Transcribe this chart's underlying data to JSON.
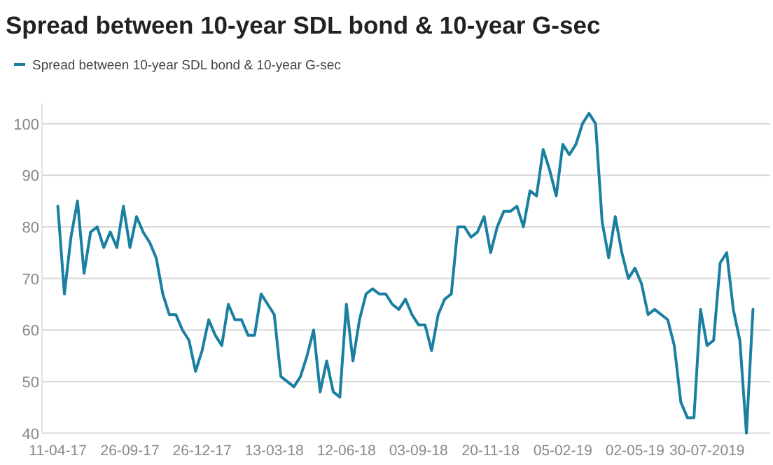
{
  "chart_data": {
    "type": "line",
    "title": "Spread between 10-year SDL bond & 10-year G-sec",
    "categories": [
      "11-04-17",
      null,
      null,
      null,
      null,
      null,
      null,
      null,
      null,
      null,
      null,
      "26-09-17",
      null,
      null,
      null,
      null,
      null,
      null,
      null,
      null,
      null,
      null,
      "26-12-17",
      null,
      null,
      null,
      null,
      null,
      null,
      null,
      null,
      null,
      null,
      "13-03-18",
      null,
      null,
      null,
      null,
      null,
      null,
      null,
      null,
      null,
      null,
      "12-06-18",
      null,
      null,
      null,
      null,
      null,
      null,
      null,
      null,
      null,
      null,
      "03-09-18",
      null,
      null,
      null,
      null,
      null,
      null,
      null,
      null,
      null,
      null,
      "20-11-18",
      null,
      null,
      null,
      null,
      null,
      null,
      null,
      null,
      null,
      null,
      "05-02-19",
      null,
      null,
      null,
      null,
      null,
      null,
      null,
      null,
      null,
      null,
      "02-05-19",
      null,
      null,
      null,
      null,
      null,
      null,
      null,
      null,
      null,
      null,
      "30-07-2019",
      null,
      null,
      null,
      null,
      null,
      null,
      null
    ],
    "series": [
      {
        "name": "Spread between 10-year SDL bond & 10-year G-sec",
        "color": "#1a7fa0",
        "values": [
          84,
          67,
          78,
          85,
          71,
          79,
          80,
          76,
          79,
          76,
          84,
          76,
          82,
          79,
          77,
          74,
          67,
          63,
          63,
          60,
          58,
          52,
          56,
          62,
          59,
          57,
          65,
          62,
          62,
          59,
          59,
          67,
          65,
          63,
          51,
          50,
          49,
          51,
          55,
          60,
          48,
          54,
          48,
          47,
          65,
          54,
          62,
          67,
          68,
          67,
          67,
          65,
          64,
          66,
          63,
          61,
          61,
          56,
          63,
          66,
          67,
          80,
          80,
          78,
          79,
          82,
          75,
          80,
          83,
          83,
          84,
          80,
          87,
          86,
          95,
          91,
          86,
          96,
          94,
          96,
          100,
          102,
          100,
          81,
          74,
          82,
          75,
          70,
          72,
          69,
          63,
          64,
          63,
          62,
          57,
          46,
          43,
          43,
          64,
          57,
          58,
          73,
          75,
          64,
          58,
          40,
          64
        ]
      }
    ],
    "ylim": [
      40,
      104
    ],
    "yticks": [
      40,
      50,
      60,
      70,
      80,
      90,
      100
    ],
    "grid": "y",
    "legend": "top left",
    "marker": "none",
    "line_style": "solid"
  }
}
